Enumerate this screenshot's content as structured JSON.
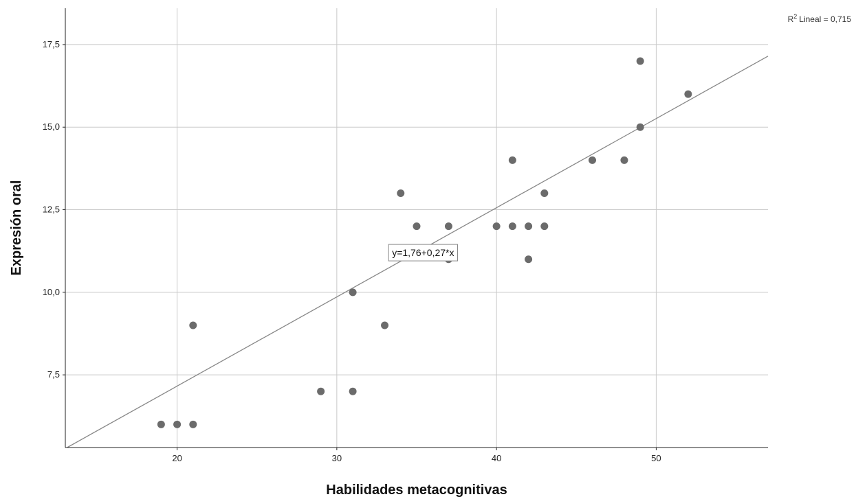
{
  "chart_data": {
    "type": "scatter",
    "xlabel": "Habilidades metacognitivas",
    "ylabel": "Expresión oral",
    "xlim": [
      13,
      57
    ],
    "ylim": [
      5.3,
      18.6
    ],
    "x_ticks": [
      20,
      30,
      40,
      50
    ],
    "x_tick_labels": [
      "20",
      "30",
      "40",
      "50"
    ],
    "y_ticks": [
      7.5,
      10.0,
      12.5,
      15.0,
      17.5
    ],
    "y_tick_labels": [
      "7,5",
      "10,0",
      "12,5",
      "15,0",
      "17,5"
    ],
    "grid": true,
    "colors": {
      "points": "#6b6b6b",
      "fit_line": "#888888",
      "grid": "#c8c8c8",
      "axis": "#222222"
    },
    "points": [
      {
        "x": 19,
        "y": 6
      },
      {
        "x": 20,
        "y": 6
      },
      {
        "x": 21,
        "y": 6
      },
      {
        "x": 21,
        "y": 9
      },
      {
        "x": 29,
        "y": 7
      },
      {
        "x": 31,
        "y": 7
      },
      {
        "x": 31,
        "y": 10
      },
      {
        "x": 33,
        "y": 9
      },
      {
        "x": 34,
        "y": 13
      },
      {
        "x": 35,
        "y": 12
      },
      {
        "x": 37,
        "y": 12
      },
      {
        "x": 37,
        "y": 11
      },
      {
        "x": 40,
        "y": 12
      },
      {
        "x": 41,
        "y": 12
      },
      {
        "x": 41,
        "y": 14
      },
      {
        "x": 42,
        "y": 12
      },
      {
        "x": 42,
        "y": 11
      },
      {
        "x": 43,
        "y": 12
      },
      {
        "x": 43,
        "y": 13
      },
      {
        "x": 46,
        "y": 14
      },
      {
        "x": 48,
        "y": 14
      },
      {
        "x": 49,
        "y": 15
      },
      {
        "x": 49,
        "y": 17
      },
      {
        "x": 52,
        "y": 16
      }
    ],
    "fit": {
      "intercept": 1.76,
      "slope": 0.27,
      "equation_label": "y=1,76+0,27*x",
      "equation_anchor": {
        "x": 33.2,
        "y": 11.2
      }
    },
    "r2": {
      "label": "R",
      "superscript": "2",
      "text": "Lineal = 0,715",
      "placement": "top-right"
    }
  }
}
